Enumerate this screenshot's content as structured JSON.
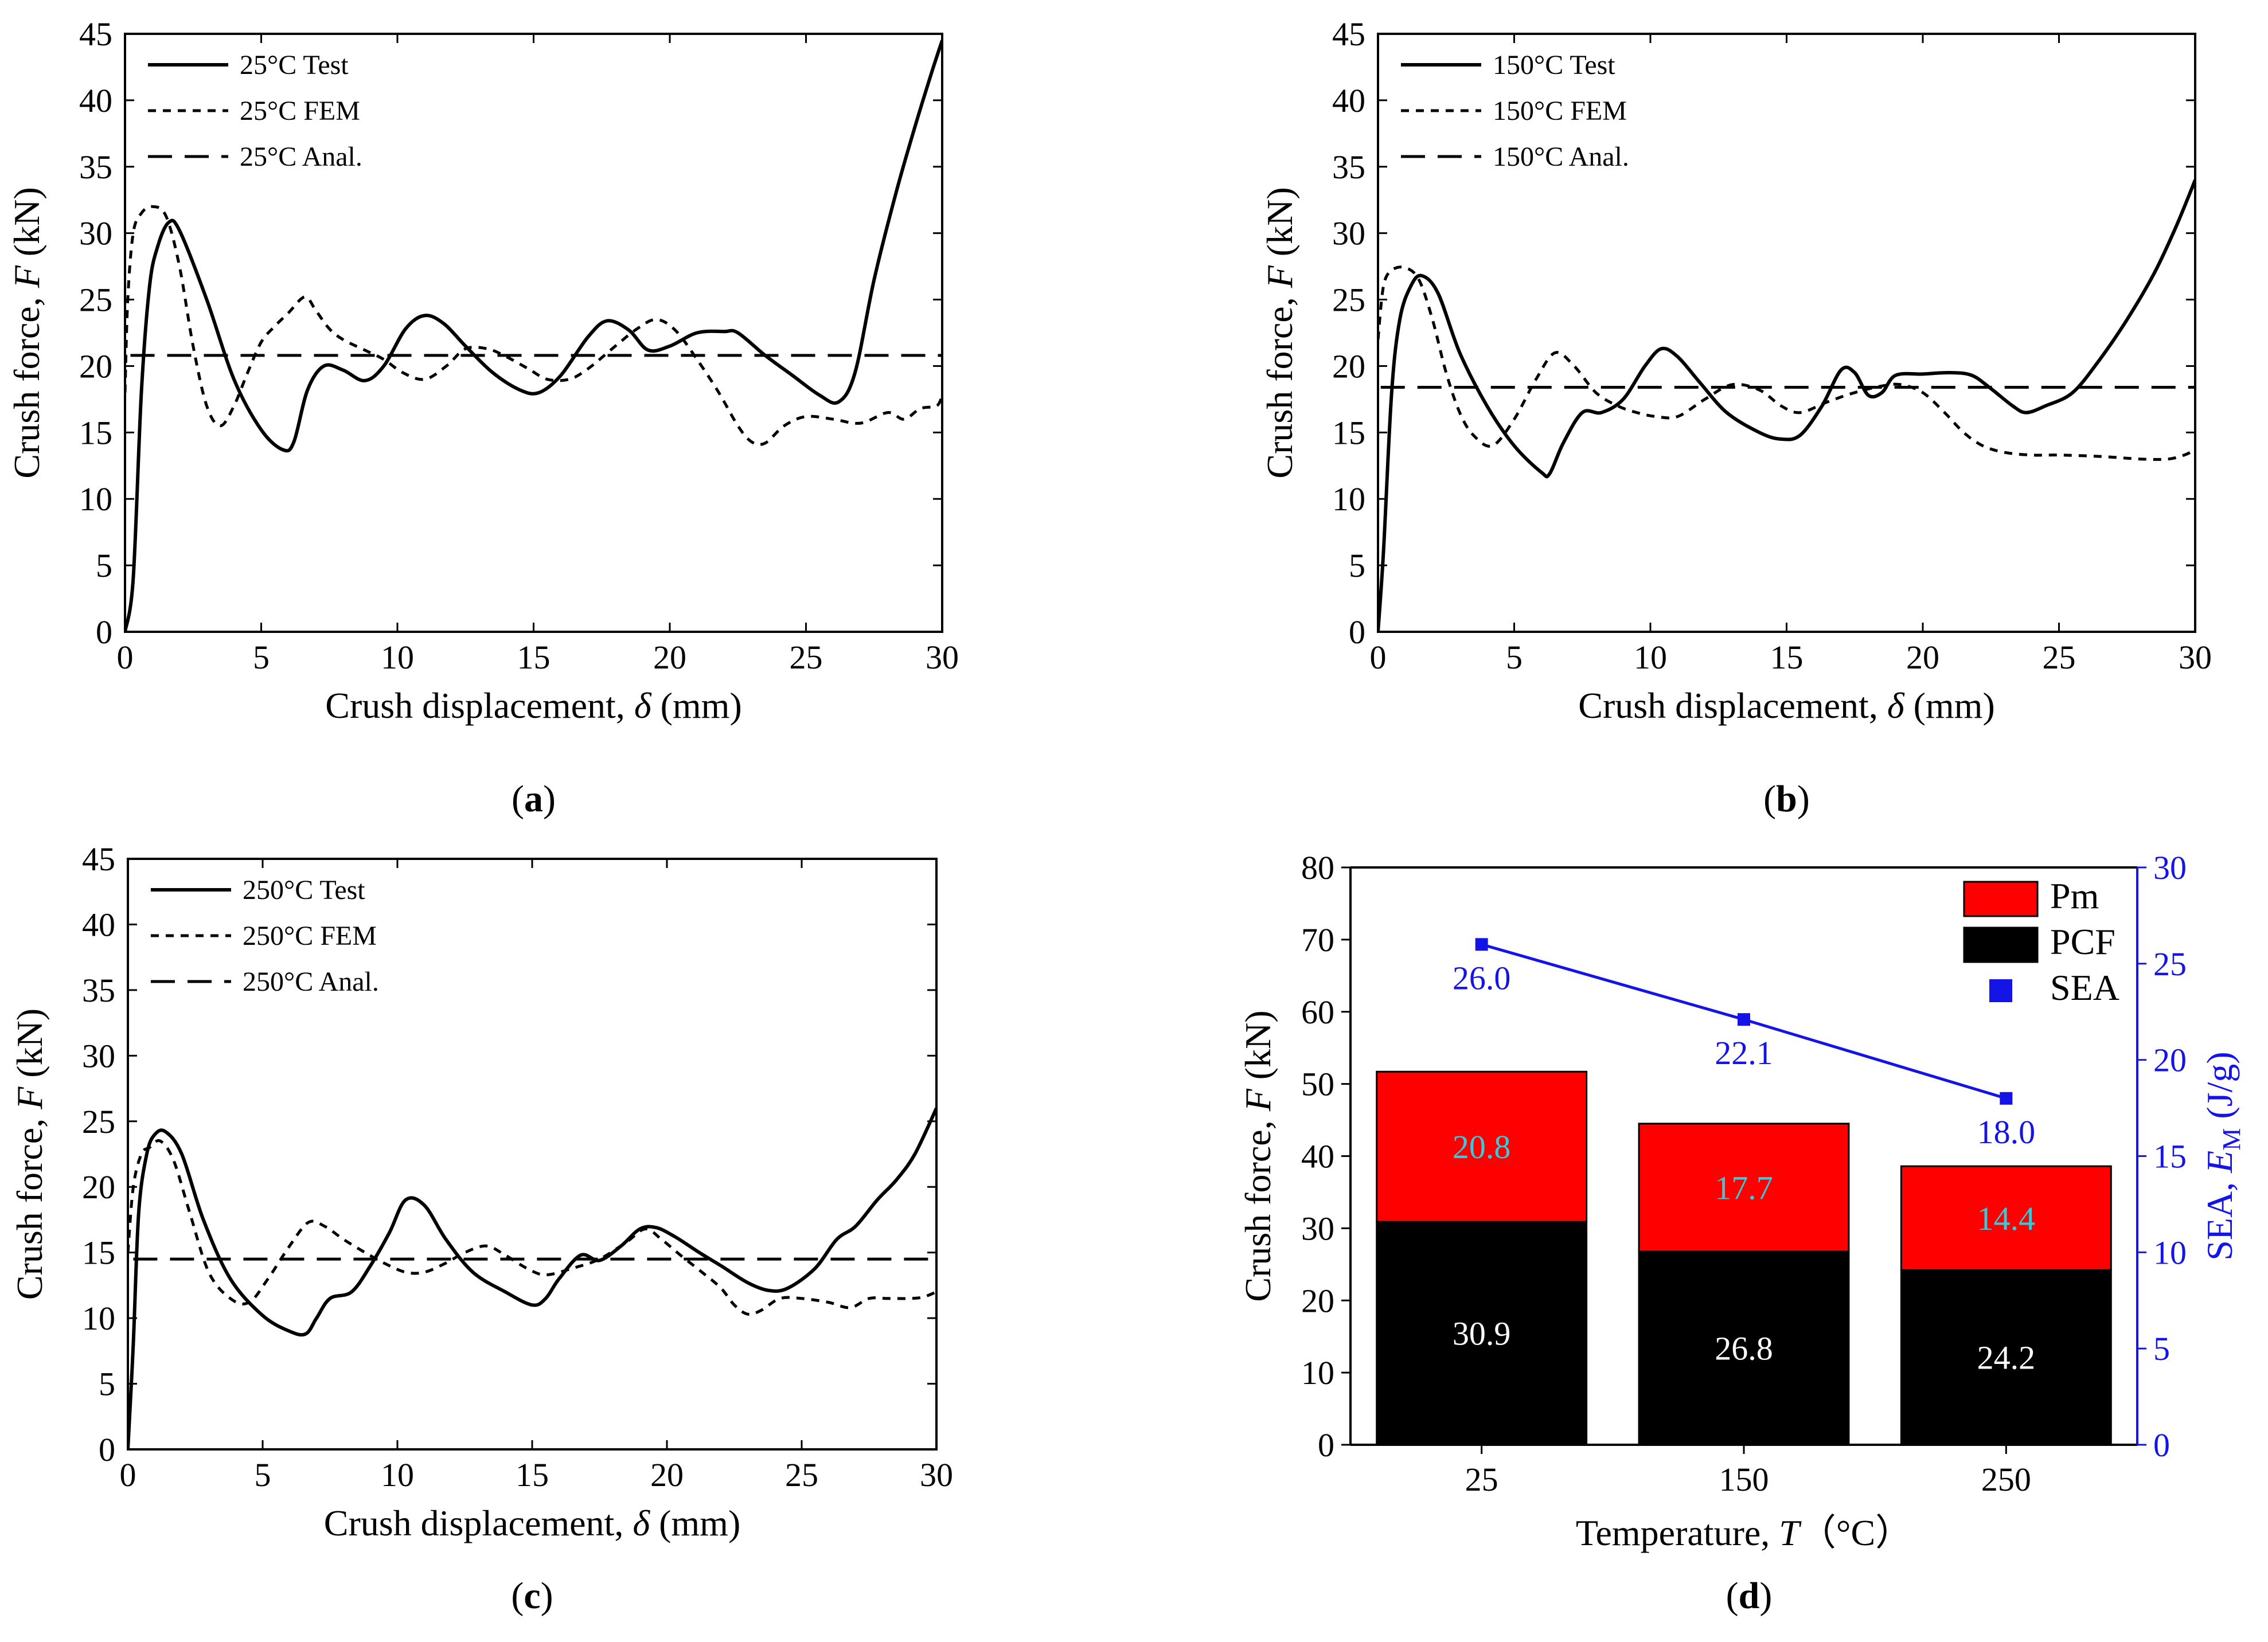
{
  "panels": [
    {
      "id": "a",
      "caption": "(a)",
      "caption_letter": "a"
    },
    {
      "id": "b",
      "caption": "(b)",
      "caption_letter": "b"
    },
    {
      "id": "c",
      "caption": "(c)",
      "caption_letter": "c"
    },
    {
      "id": "d",
      "caption": "(d)",
      "caption_letter": "d"
    }
  ],
  "colors": {
    "pm": "#ff0000",
    "pcf": "#000000",
    "sea": "#1414e6",
    "pm_label": "#33ccdd"
  },
  "chart_data": [
    {
      "panel": "a",
      "type": "line",
      "xlabel": "Crush displacement, δ (mm)",
      "ylabel": "Crush force, F (kN)",
      "xlim": [
        0,
        30
      ],
      "ylim": [
        0,
        45
      ],
      "xticks": [
        0,
        5,
        10,
        15,
        20,
        25,
        30
      ],
      "yticks": [
        0,
        5,
        10,
        15,
        20,
        25,
        30,
        35,
        40,
        45
      ],
      "series": [
        {
          "name": "25°C Test",
          "style": "solid",
          "x": [
            0,
            0.3,
            0.6,
            0.9,
            1.2,
            1.6,
            2.0,
            3.0,
            4.0,
            5.0,
            5.8,
            6.2,
            6.7,
            7.3,
            8.0,
            8.8,
            9.5,
            10.3,
            11.0,
            11.7,
            12.5,
            13.5,
            14.5,
            15.2,
            16.0,
            17.0,
            17.7,
            18.5,
            19.2,
            20.0,
            21.0,
            22.0,
            22.5,
            23.5,
            24.5,
            25.5,
            26.2,
            26.8,
            27.5,
            28.3,
            29.0,
            29.6,
            30.0
          ],
          "y": [
            0,
            4,
            18,
            26,
            29,
            30.8,
            30.2,
            25,
            19,
            15.2,
            13.7,
            14.3,
            18.2,
            20.0,
            19.7,
            18.9,
            20.0,
            22.8,
            23.8,
            23.2,
            21.5,
            19.5,
            18.2,
            18.0,
            19.3,
            22.2,
            23.4,
            22.7,
            21.2,
            21.5,
            22.5,
            22.6,
            22.5,
            20.8,
            19.3,
            17.8,
            17.3,
            19.5,
            26.5,
            33.0,
            38.0,
            42.0,
            44.5
          ]
        },
        {
          "name": "25°C FEM",
          "style": "dotted",
          "x": [
            0,
            0.1,
            0.3,
            0.6,
            1.0,
            1.5,
            2.0,
            2.5,
            3.0,
            3.5,
            4.0,
            4.5,
            5.0,
            5.5,
            6.0,
            6.6,
            7.0,
            7.5,
            8.0,
            8.8,
            9.5,
            10.2,
            11.0,
            11.8,
            12.5,
            13.3,
            14.0,
            14.8,
            15.5,
            16.3,
            17.0,
            18.0,
            18.8,
            19.5,
            20.2,
            21.0,
            21.8,
            22.5,
            23.0,
            23.5,
            24.2,
            25.0,
            26.0,
            27.0,
            28.0,
            28.6,
            29.2,
            29.8,
            30.0
          ],
          "y": [
            18,
            25,
            30,
            31.5,
            32.0,
            31.3,
            27.5,
            21.5,
            17.0,
            15.5,
            17.0,
            19.5,
            21.8,
            23.0,
            24.0,
            25.2,
            24.2,
            22.8,
            22.0,
            21.2,
            20.5,
            19.5,
            19.0,
            20.0,
            21.3,
            21.3,
            20.7,
            19.8,
            19.0,
            19.0,
            19.8,
            21.5,
            22.8,
            23.5,
            22.7,
            20.5,
            18.0,
            15.5,
            14.3,
            14.2,
            15.5,
            16.2,
            16.0,
            15.7,
            16.5,
            16.0,
            16.8,
            17.0,
            17.8
          ]
        },
        {
          "name": "25°C Anal.",
          "style": "dashed",
          "x": [
            0.2,
            30
          ],
          "y": [
            20.8,
            20.8
          ]
        }
      ]
    },
    {
      "panel": "b",
      "type": "line",
      "xlabel": "Crush displacement, δ (mm)",
      "ylabel": "Crush force, F (kN)",
      "xlim": [
        0,
        30
      ],
      "ylim": [
        0,
        45
      ],
      "xticks": [
        0,
        5,
        10,
        15,
        20,
        25,
        30
      ],
      "yticks": [
        0,
        5,
        10,
        15,
        20,
        25,
        30,
        35,
        40,
        45
      ],
      "series": [
        {
          "name": "150°C Test",
          "style": "solid",
          "x": [
            0,
            0.2,
            0.5,
            0.8,
            1.2,
            1.6,
            2.2,
            3.0,
            4.0,
            5.0,
            6.0,
            6.3,
            6.8,
            7.5,
            8.2,
            9.0,
            9.8,
            10.4,
            11.0,
            11.8,
            12.8,
            14.0,
            14.8,
            15.5,
            16.3,
            17.0,
            17.5,
            18.0,
            18.5,
            19.0,
            20.0,
            21.0,
            21.8,
            22.5,
            23.3,
            23.8,
            24.5,
            25.5,
            26.5,
            27.5,
            28.5,
            29.3,
            30.0
          ],
          "y": [
            0,
            6,
            18,
            23.5,
            26.0,
            26.8,
            25.5,
            21.0,
            17.0,
            14.0,
            12.0,
            11.9,
            14.2,
            16.5,
            16.5,
            17.5,
            20.0,
            21.3,
            20.7,
            18.8,
            16.5,
            15.0,
            14.5,
            14.8,
            17.0,
            19.7,
            19.5,
            17.8,
            18.0,
            19.3,
            19.4,
            19.5,
            19.3,
            18.3,
            17.0,
            16.5,
            17.0,
            18.0,
            20.5,
            23.5,
            27.0,
            30.5,
            34.0
          ]
        },
        {
          "name": "150°C FEM",
          "style": "dotted",
          "x": [
            0,
            0.2,
            0.5,
            1.0,
            1.5,
            2.0,
            2.5,
            3.0,
            3.5,
            4.2,
            5.0,
            5.8,
            6.5,
            7.2,
            8.0,
            8.8,
            9.5,
            10.2,
            11.0,
            12.0,
            13.0,
            14.0,
            14.8,
            15.5,
            16.5,
            17.5,
            18.5,
            19.2,
            20.0,
            20.8,
            21.5,
            22.2,
            23.0,
            24.0,
            25.0,
            26.5,
            28.0,
            29.0,
            29.6,
            30.0
          ],
          "y": [
            22,
            26,
            27.2,
            27.4,
            26.5,
            23.5,
            19.5,
            16.5,
            14.8,
            14.0,
            16.0,
            19.0,
            21.0,
            20.0,
            18.0,
            17.0,
            16.5,
            16.2,
            16.2,
            17.5,
            18.6,
            18.2,
            17.0,
            16.5,
            17.3,
            18.0,
            18.5,
            18.6,
            18.0,
            16.5,
            15.0,
            14.0,
            13.5,
            13.3,
            13.3,
            13.2,
            13.0,
            13.0,
            13.3,
            13.7
          ]
        },
        {
          "name": "150°C Anal.",
          "style": "dashed",
          "x": [
            0.1,
            30
          ],
          "y": [
            18.4,
            18.4
          ]
        }
      ]
    },
    {
      "panel": "c",
      "type": "line",
      "xlabel": "Crush displacement, δ (mm)",
      "ylabel": "Crush force, F (kN)",
      "xlim": [
        0,
        30
      ],
      "ylim": [
        0,
        45
      ],
      "xticks": [
        0,
        5,
        10,
        15,
        20,
        25,
        30
      ],
      "yticks": [
        0,
        5,
        10,
        15,
        20,
        25,
        30,
        35,
        40,
        45
      ],
      "series": [
        {
          "name": "250°C Test",
          "style": "solid",
          "x": [
            0,
            0.2,
            0.4,
            0.7,
            1.0,
            1.4,
            2.0,
            2.8,
            3.8,
            5.0,
            6.0,
            6.6,
            7.0,
            7.5,
            8.3,
            9.0,
            9.7,
            10.3,
            11.0,
            11.8,
            12.8,
            14.0,
            15.0,
            15.5,
            16.0,
            16.8,
            17.5,
            18.3,
            19.0,
            19.6,
            20.3,
            21.2,
            22.0,
            23.0,
            23.8,
            24.5,
            25.5,
            26.3,
            27.0,
            27.8,
            28.5,
            29.2,
            30.0
          ],
          "y": [
            0,
            8,
            18,
            22.5,
            24.0,
            24.2,
            22.5,
            17.5,
            13.0,
            10.2,
            9.0,
            8.8,
            10.0,
            11.5,
            12.0,
            14.0,
            16.5,
            19.0,
            18.6,
            16.0,
            13.5,
            12.0,
            11.0,
            11.5,
            13.0,
            14.8,
            14.4,
            15.5,
            16.8,
            16.9,
            16.2,
            15.0,
            14.0,
            12.7,
            12.1,
            12.3,
            13.8,
            16.0,
            17.0,
            19.0,
            20.5,
            22.5,
            26.0
          ]
        },
        {
          "name": "250°C FEM",
          "style": "dotted",
          "x": [
            0,
            0.2,
            0.5,
            0.8,
            1.2,
            1.7,
            2.3,
            3.0,
            3.8,
            4.5,
            5.2,
            6.0,
            6.7,
            7.3,
            8.0,
            8.8,
            9.5,
            10.3,
            11.0,
            11.8,
            12.5,
            13.3,
            14.0,
            14.8,
            15.5,
            16.5,
            17.5,
            18.5,
            19.2,
            19.8,
            20.5,
            21.3,
            22.0,
            22.5,
            23.0,
            23.5,
            24.2,
            25.0,
            26.0,
            26.8,
            27.5,
            28.2,
            29.0,
            29.5,
            30.0
          ],
          "y": [
            15,
            20,
            22.5,
            23.0,
            23.5,
            22.0,
            18.0,
            13.5,
            11.5,
            11.2,
            13.0,
            15.5,
            17.3,
            17.0,
            16.0,
            15.0,
            14.2,
            13.5,
            13.5,
            14.2,
            15.0,
            15.5,
            14.8,
            13.8,
            13.3,
            13.8,
            14.5,
            15.8,
            16.8,
            16.0,
            14.8,
            13.5,
            12.3,
            11.0,
            10.3,
            10.6,
            11.5,
            11.5,
            11.2,
            10.8,
            11.5,
            11.5,
            11.5,
            11.6,
            12.0
          ]
        },
        {
          "name": "250°C Anal.",
          "style": "dashed",
          "x": [
            0.2,
            30
          ],
          "y": [
            14.5,
            14.5
          ]
        }
      ]
    },
    {
      "panel": "d",
      "type": "bar",
      "xlabel": "Temperature, T (°C)",
      "ylabel": "Crush force, F (kN)",
      "y2label": "SEA, EM (J/g)",
      "categories": [
        "25",
        "150",
        "250"
      ],
      "ylim": [
        0,
        80
      ],
      "y2lim": [
        0,
        30
      ],
      "yticks": [
        0,
        10,
        20,
        30,
        40,
        50,
        60,
        70,
        80
      ],
      "y2ticks": [
        0,
        5,
        10,
        15,
        20,
        25,
        30
      ],
      "stacked": true,
      "series": [
        {
          "name": "PCF",
          "values": [
            30.9,
            26.8,
            24.2
          ]
        },
        {
          "name": "Pm",
          "values": [
            20.8,
            17.7,
            14.4
          ]
        },
        {
          "name": "SEA",
          "axis": "right",
          "values": [
            26.0,
            22.1,
            18.0
          ]
        }
      ],
      "value_labels": {
        "pcf": [
          "30.9",
          "26.8",
          "24.2"
        ],
        "pm": [
          "20.8",
          "17.7",
          "14.4"
        ],
        "sea": [
          "26.0",
          "22.1",
          "18.0"
        ]
      },
      "legend": [
        "Pm",
        "PCF",
        "SEA"
      ],
      "legend_position": "top-right"
    }
  ],
  "axis_text": {
    "ylabel_main": "Crush force, ",
    "ylabel_var": "F",
    "ylabel_unit": " (kN)",
    "xlabel_main": "Crush displacement, ",
    "xlabel_var": "δ",
    "xlabel_unit": " (mm)",
    "temp_main": "Temperature, ",
    "temp_var": "T",
    "temp_unit": "（°C）",
    "sea_main": "SEA, ",
    "sea_var": "E",
    "sea_sub": "M",
    "sea_unit": " (J/g)"
  }
}
